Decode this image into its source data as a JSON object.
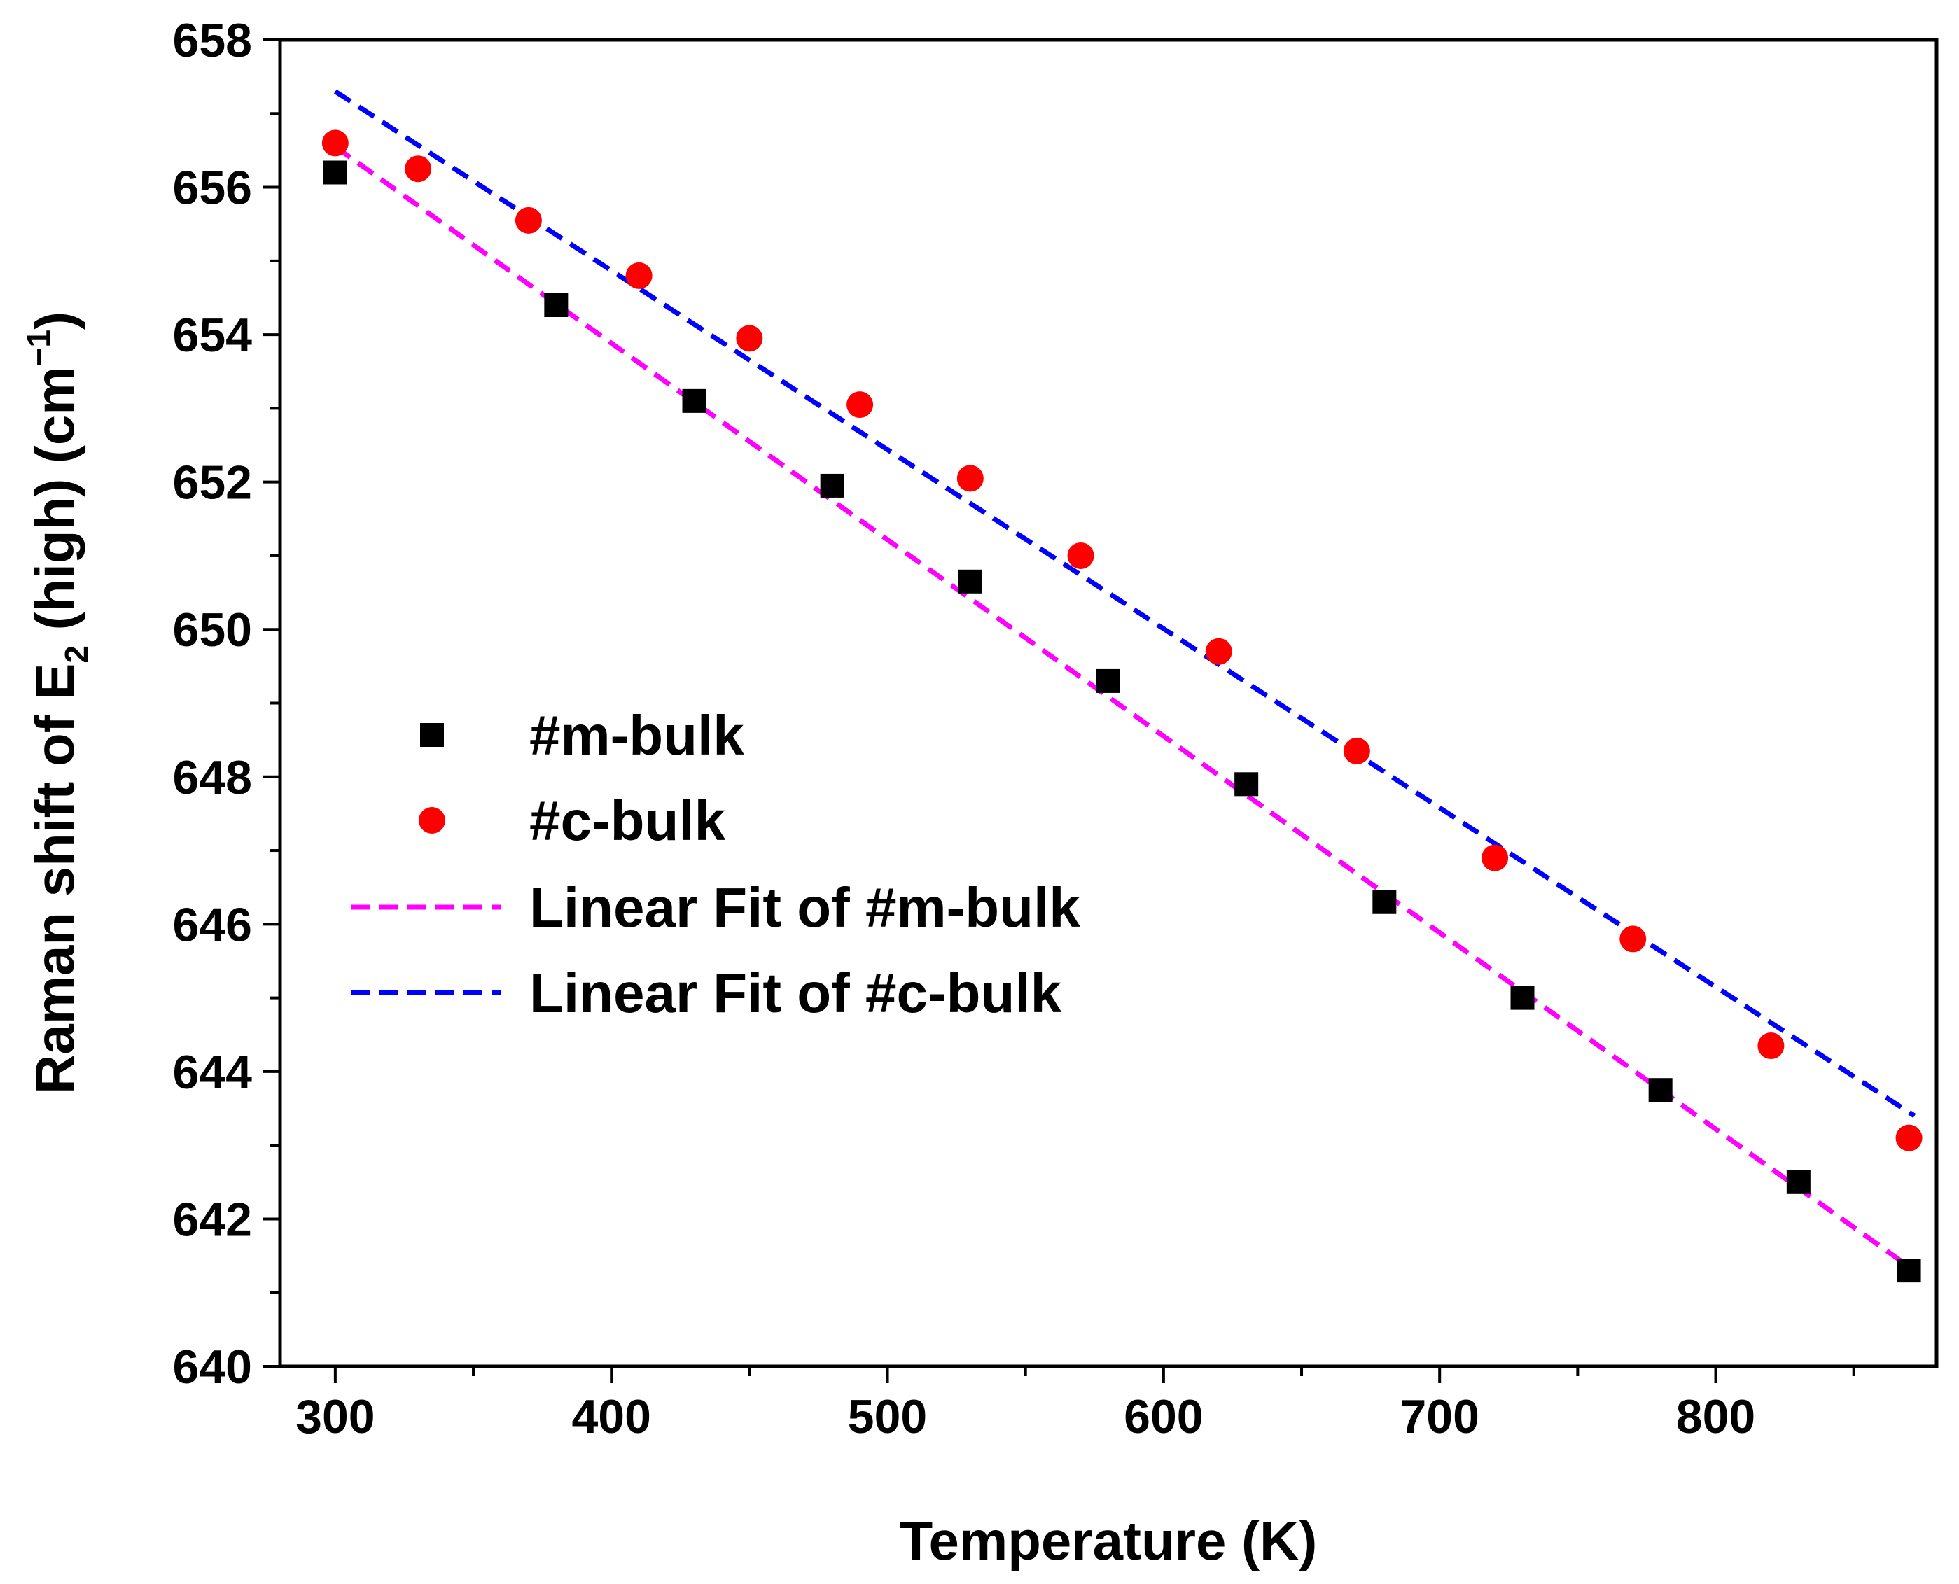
{
  "chart_data": {
    "type": "scatter",
    "title": "",
    "xlabel": "Temperature (K)",
    "ylabel": {
      "prefix": "Raman shift of E",
      "sub": "2",
      "middle": " (high) (cm",
      "sup": "−1",
      "suffix": ")"
    },
    "xlim": [
      280,
      880
    ],
    "ylim": [
      640,
      658
    ],
    "x_ticks": [
      300,
      400,
      500,
      600,
      700,
      800
    ],
    "y_ticks": [
      640,
      642,
      644,
      646,
      648,
      650,
      652,
      654,
      656,
      658
    ],
    "x_minor_step": 50,
    "y_minor_step": 1,
    "series": [
      {
        "name": "#m-bulk",
        "kind": "points",
        "marker": "square",
        "color": "#000000",
        "x": [
          300,
          380,
          430,
          480,
          530,
          580,
          630,
          680,
          730,
          780,
          830,
          870
        ],
        "y": [
          656.2,
          654.4,
          653.1,
          651.95,
          650.65,
          649.3,
          647.9,
          646.3,
          645.0,
          643.75,
          642.5,
          641.3
        ]
      },
      {
        "name": "#c-bulk",
        "kind": "points",
        "marker": "circle",
        "color": "#ff0000",
        "x": [
          300,
          330,
          370,
          410,
          450,
          490,
          530,
          570,
          620,
          670,
          720,
          770,
          820,
          870
        ],
        "y": [
          656.6,
          656.25,
          655.55,
          654.8,
          653.95,
          653.05,
          652.05,
          651.0,
          649.7,
          648.35,
          646.9,
          645.8,
          644.35,
          643.1
        ]
      },
      {
        "name": "Linear Fit of #m-bulk",
        "kind": "line",
        "dash": true,
        "color": "#ff00ff",
        "x": [
          300,
          872
        ],
        "y": [
          656.55,
          641.3
        ]
      },
      {
        "name": "Linear Fit of #c-bulk",
        "kind": "line",
        "dash": true,
        "color": "#0000ff",
        "x": [
          300,
          872
        ],
        "y": [
          657.3,
          643.4
        ]
      }
    ],
    "legend_position": "left-middle",
    "grid": false
  }
}
